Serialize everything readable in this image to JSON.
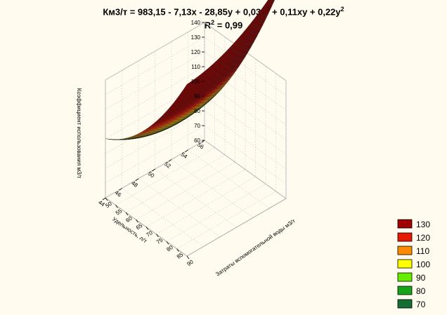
{
  "chart_data": {
    "type": "surface3d",
    "title_parts": [
      "Км3/т = 983,15 - 7,13x - 28,85y + 0,03x",
      "2",
      " + 0,11xy + 0,22y",
      "2"
    ],
    "subtitle_parts": [
      "R",
      "2",
      " = 0,99"
    ],
    "formula": {
      "z": "983.15 - 7.13*x - 28.85*y + 0.03*x^2 + 0.11*x*y + 0.22*y^2",
      "coefficients": {
        "const": 983.15,
        "x": -7.13,
        "y": -28.85,
        "x2": 0.03,
        "xy": 0.11,
        "y2": 0.22
      },
      "r_squared": 0.99
    },
    "xlabel": "Затраты вспомогательной воды м3/т",
    "ylabel": "Удельность, л/т",
    "zlabel": "Коэффициент использования м3/т",
    "xlim": [
      50,
      90
    ],
    "ylim": [
      44,
      56
    ],
    "zlim": [
      60,
      140
    ],
    "x_ticks": [
      "50",
      "55",
      "60",
      "65",
      "70",
      "75",
      "80",
      "85",
      "90"
    ],
    "y_ticks": [
      "44",
      "46",
      "48",
      "50",
      "52",
      "54",
      "56"
    ],
    "z_ticks": [
      "60",
      "70",
      "80",
      "90",
      "100",
      "110",
      "120",
      "130",
      "140"
    ],
    "legend": {
      "position": "bottom-right",
      "items": [
        {
          "label": "130",
          "color": "#a00000"
        },
        {
          "label": "120",
          "color": "#e51a00"
        },
        {
          "label": "110",
          "color": "#ff8c00"
        },
        {
          "label": "100",
          "color": "#ffff00"
        },
        {
          "label": "90",
          "color": "#66ee00"
        },
        {
          "label": "80",
          "color": "#18a418"
        },
        {
          "label": "70",
          "color": "#146e32"
        }
      ]
    }
  }
}
